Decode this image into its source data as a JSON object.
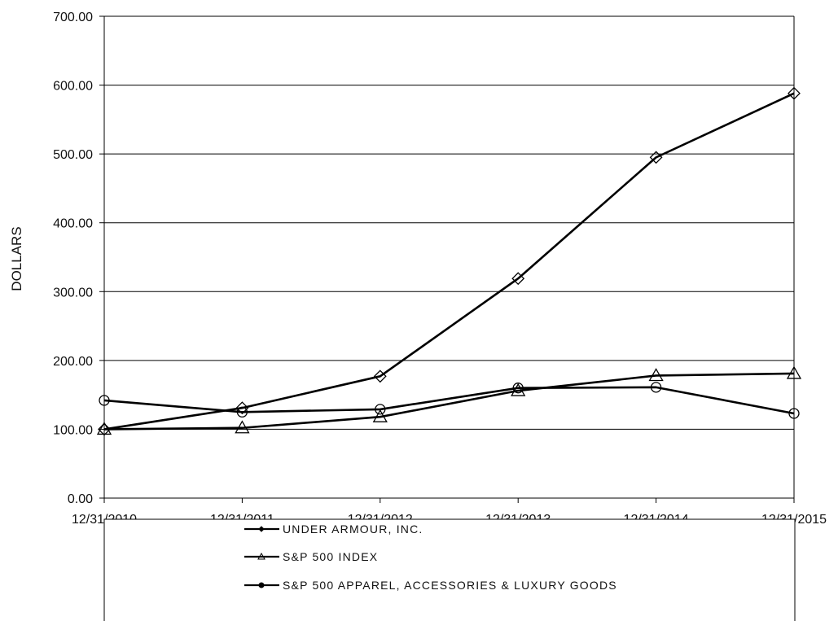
{
  "chart_data": {
    "type": "line",
    "title": "",
    "xlabel": "",
    "ylabel": "DOLLARS",
    "ylim": [
      0,
      700
    ],
    "y_ticks": [
      "0.00",
      "100.00",
      "200.00",
      "300.00",
      "400.00",
      "500.00",
      "600.00",
      "700.00"
    ],
    "categories": [
      "12/31/2010",
      "12/31/2011",
      "12/31/2012",
      "12/31/2013",
      "12/31/2014",
      "12/31/2015"
    ],
    "grid": "horizontal",
    "legend_position": "bottom",
    "series": [
      {
        "name": "UNDER ARMOUR, INC.",
        "marker": "diamond",
        "values": [
          100.0,
          131.0,
          177.0,
          319.0,
          495.0,
          588.0
        ]
      },
      {
        "name": "S&P 500 INDEX",
        "marker": "triangle",
        "values": [
          100.0,
          102.0,
          118.0,
          156.0,
          178.0,
          181.0
        ]
      },
      {
        "name": "S&P 500 APPAREL, ACCESSORIES & LUXURY GOODS",
        "marker": "circle",
        "values": [
          142.0,
          125.0,
          129.0,
          160.0,
          161.0,
          123.0
        ]
      }
    ]
  }
}
